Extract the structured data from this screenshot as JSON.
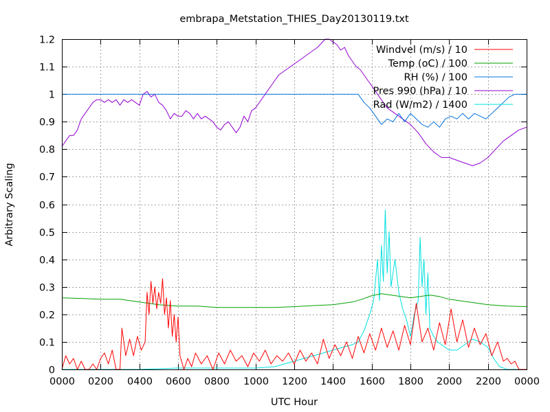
{
  "chart_data": {
    "type": "line",
    "title": "embrapa_Metstation_THIES_Day20130119.txt",
    "xlabel": "UTC Hour",
    "ylabel": "Arbitrary Scaling",
    "xlim": [
      0,
      24
    ],
    "ylim": [
      0,
      1.2
    ],
    "grid": true,
    "legend_position": "top-right",
    "x_ticks": [
      0,
      2,
      4,
      6,
      8,
      10,
      12,
      14,
      16,
      18,
      20,
      22,
      24
    ],
    "x_tick_labels": [
      "0000",
      "0200",
      "0400",
      "0600",
      "0800",
      "1000",
      "1200",
      "1400",
      "1600",
      "1800",
      "2000",
      "2200",
      "0000"
    ],
    "y_ticks": [
      0,
      0.1,
      0.2,
      0.3,
      0.4,
      0.5,
      0.6,
      0.7,
      0.8,
      0.9,
      1,
      1.1,
      1.2
    ],
    "y_tick_labels": [
      "0",
      "0.1",
      "0.2",
      "0.3",
      "0.4",
      "0.5",
      "0.6",
      "0.7",
      "0.8",
      "0.9",
      "1",
      "1.1",
      "1.2"
    ],
    "series": [
      {
        "name": "Windvel (m/s) / 10",
        "color": "#ff0000",
        "x": [
          0.0,
          0.2,
          0.4,
          0.6,
          0.8,
          1.0,
          1.2,
          1.4,
          1.6,
          1.8,
          2.0,
          2.2,
          2.4,
          2.6,
          2.8,
          3.0,
          3.1,
          3.3,
          3.5,
          3.7,
          3.9,
          4.1,
          4.3,
          4.4,
          4.5,
          4.6,
          4.7,
          4.8,
          4.9,
          5.0,
          5.1,
          5.2,
          5.3,
          5.4,
          5.5,
          5.6,
          5.7,
          5.8,
          5.9,
          6.0,
          6.1,
          6.3,
          6.5,
          6.7,
          6.9,
          7.2,
          7.5,
          7.8,
          8.1,
          8.4,
          8.7,
          9.0,
          9.3,
          9.6,
          9.9,
          10.2,
          10.5,
          10.8,
          11.1,
          11.4,
          11.7,
          12.0,
          12.3,
          12.6,
          12.9,
          13.2,
          13.5,
          13.8,
          14.1,
          14.4,
          14.7,
          15.0,
          15.3,
          15.6,
          15.9,
          16.2,
          16.5,
          16.8,
          17.1,
          17.4,
          17.7,
          18.0,
          18.3,
          18.6,
          18.9,
          19.2,
          19.5,
          19.8,
          20.1,
          20.4,
          20.7,
          21.0,
          21.3,
          21.6,
          21.9,
          22.2,
          22.5,
          22.8,
          23.0,
          23.2,
          23.4,
          23.6,
          23.8,
          24.0
        ],
        "y": [
          0.0,
          0.05,
          0.02,
          0.04,
          0.0,
          0.03,
          0.0,
          0.0,
          0.02,
          0.0,
          0.04,
          0.06,
          0.02,
          0.07,
          0.0,
          0.0,
          0.15,
          0.05,
          0.11,
          0.05,
          0.12,
          0.07,
          0.1,
          0.28,
          0.2,
          0.32,
          0.24,
          0.3,
          0.22,
          0.28,
          0.24,
          0.33,
          0.2,
          0.26,
          0.15,
          0.25,
          0.12,
          0.2,
          0.1,
          0.19,
          0.05,
          0.0,
          0.04,
          0.01,
          0.06,
          0.02,
          0.05,
          0.0,
          0.06,
          0.02,
          0.07,
          0.03,
          0.05,
          0.01,
          0.06,
          0.03,
          0.07,
          0.02,
          0.05,
          0.03,
          0.06,
          0.02,
          0.07,
          0.03,
          0.06,
          0.02,
          0.11,
          0.04,
          0.09,
          0.05,
          0.1,
          0.04,
          0.12,
          0.06,
          0.13,
          0.07,
          0.15,
          0.08,
          0.14,
          0.07,
          0.16,
          0.09,
          0.24,
          0.1,
          0.15,
          0.07,
          0.17,
          0.09,
          0.22,
          0.1,
          0.18,
          0.08,
          0.15,
          0.09,
          0.13,
          0.05,
          0.1,
          0.03,
          0.04,
          0.02,
          0.03,
          0.0,
          0.0,
          0.0
        ]
      },
      {
        "name": "Temp (oC) / 100",
        "color": "#00a000",
        "x": [
          0,
          1,
          2,
          3,
          4,
          5,
          6,
          7,
          8,
          9,
          10,
          11,
          12,
          13,
          14,
          15,
          15.5,
          16,
          16.5,
          17,
          17.5,
          18,
          18.5,
          19,
          19.5,
          20,
          21,
          22,
          23,
          24
        ],
        "y": [
          0.26,
          0.258,
          0.255,
          0.255,
          0.245,
          0.235,
          0.23,
          0.23,
          0.225,
          0.225,
          0.225,
          0.225,
          0.228,
          0.232,
          0.235,
          0.245,
          0.255,
          0.268,
          0.275,
          0.27,
          0.265,
          0.26,
          0.265,
          0.27,
          0.265,
          0.255,
          0.245,
          0.235,
          0.23,
          0.228
        ]
      },
      {
        "name": "RH (%) / 100",
        "color": "#0070e0",
        "x": [
          0,
          2,
          4,
          6,
          8,
          10,
          12,
          14,
          15.3,
          15.6,
          15.9,
          16.2,
          16.5,
          16.8,
          17.1,
          17.4,
          17.7,
          18.0,
          18.3,
          18.6,
          18.9,
          19.2,
          19.5,
          19.8,
          20.1,
          20.4,
          20.7,
          21.0,
          21.3,
          21.6,
          21.9,
          22.2,
          22.5,
          22.8,
          23.1,
          23.4,
          24.0
        ],
        "y": [
          1.0,
          1.0,
          1.0,
          1.0,
          1.0,
          1.0,
          1.0,
          1.0,
          1.0,
          0.97,
          0.95,
          0.92,
          0.89,
          0.91,
          0.9,
          0.93,
          0.9,
          0.93,
          0.91,
          0.89,
          0.88,
          0.9,
          0.88,
          0.91,
          0.92,
          0.91,
          0.93,
          0.91,
          0.93,
          0.92,
          0.91,
          0.93,
          0.95,
          0.97,
          0.99,
          1.0,
          1.0
        ]
      },
      {
        "name": "Pres 990 (hPa) / 10",
        "color": "#9400d3",
        "x": [
          0.0,
          0.2,
          0.4,
          0.6,
          0.8,
          1.0,
          1.2,
          1.4,
          1.6,
          1.8,
          2.0,
          2.2,
          2.4,
          2.6,
          2.8,
          3.0,
          3.2,
          3.4,
          3.6,
          3.8,
          4.0,
          4.2,
          4.4,
          4.6,
          4.8,
          5.0,
          5.2,
          5.4,
          5.6,
          5.8,
          6.0,
          6.2,
          6.4,
          6.6,
          6.8,
          7.0,
          7.2,
          7.4,
          7.6,
          7.8,
          8.0,
          8.2,
          8.4,
          8.6,
          8.8,
          9.0,
          9.2,
          9.4,
          9.6,
          9.8,
          10.0,
          10.4,
          10.8,
          11.2,
          11.6,
          12.0,
          12.4,
          12.8,
          13.2,
          13.6,
          13.8,
          14.0,
          14.2,
          14.4,
          14.6,
          14.8,
          15.0,
          15.2,
          15.4,
          15.6,
          15.8,
          16.0,
          16.4,
          16.8,
          17.2,
          17.6,
          18.0,
          18.4,
          18.8,
          19.2,
          19.6,
          20.0,
          20.4,
          20.8,
          21.2,
          21.6,
          22.0,
          22.4,
          22.8,
          23.2,
          23.6,
          24.0
        ],
        "y": [
          0.81,
          0.83,
          0.85,
          0.85,
          0.87,
          0.91,
          0.93,
          0.95,
          0.97,
          0.98,
          0.98,
          0.97,
          0.98,
          0.97,
          0.98,
          0.96,
          0.98,
          0.97,
          0.98,
          0.97,
          0.96,
          1.0,
          1.01,
          0.99,
          1.0,
          0.97,
          0.96,
          0.94,
          0.91,
          0.93,
          0.92,
          0.92,
          0.94,
          0.93,
          0.91,
          0.93,
          0.91,
          0.92,
          0.91,
          0.9,
          0.88,
          0.87,
          0.89,
          0.9,
          0.88,
          0.86,
          0.88,
          0.92,
          0.9,
          0.94,
          0.95,
          0.99,
          1.03,
          1.07,
          1.09,
          1.11,
          1.13,
          1.15,
          1.17,
          1.2,
          1.21,
          1.19,
          1.18,
          1.16,
          1.17,
          1.14,
          1.12,
          1.1,
          1.09,
          1.07,
          1.05,
          1.03,
          0.99,
          0.95,
          0.93,
          0.91,
          0.89,
          0.86,
          0.82,
          0.79,
          0.77,
          0.77,
          0.76,
          0.75,
          0.74,
          0.75,
          0.77,
          0.8,
          0.83,
          0.85,
          0.87,
          0.88
        ]
      },
      {
        "name": "Rad (W/m2) / 1400",
        "color": "#00e0e0",
        "x": [
          0,
          4,
          6,
          8,
          10,
          11,
          12,
          13,
          13.5,
          14,
          14.5,
          15,
          15.3,
          15.6,
          15.9,
          16.1,
          16.3,
          16.4,
          16.5,
          16.6,
          16.7,
          16.8,
          16.9,
          17.0,
          17.2,
          17.4,
          17.6,
          17.8,
          18.0,
          18.2,
          18.4,
          18.5,
          18.6,
          18.7,
          18.8,
          18.9,
          19.0,
          19.2,
          19.4,
          19.6,
          19.8,
          20.0,
          20.4,
          20.8,
          21.2,
          21.6,
          22.0,
          22.3,
          22.6,
          23.0,
          24.0
        ],
        "y": [
          0,
          0,
          0.005,
          0.005,
          0.005,
          0.01,
          0.03,
          0.05,
          0.06,
          0.07,
          0.08,
          0.09,
          0.1,
          0.14,
          0.2,
          0.25,
          0.4,
          0.25,
          0.45,
          0.32,
          0.58,
          0.35,
          0.5,
          0.3,
          0.4,
          0.28,
          0.22,
          0.18,
          0.12,
          0.2,
          0.25,
          0.48,
          0.3,
          0.4,
          0.2,
          0.35,
          0.15,
          0.12,
          0.1,
          0.09,
          0.08,
          0.07,
          0.07,
          0.09,
          0.11,
          0.1,
          0.08,
          0.04,
          0.01,
          0.0,
          0.0
        ]
      }
    ]
  }
}
